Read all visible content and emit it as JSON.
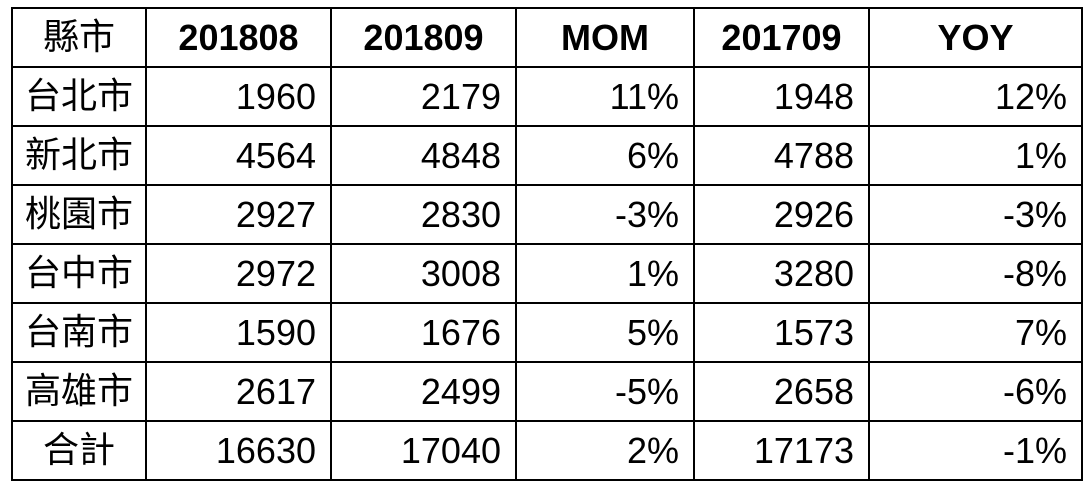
{
  "table": {
    "headers": [
      "縣市",
      "201808",
      "201809",
      "MOM",
      "201709",
      "YOY"
    ],
    "rows": [
      [
        "台北市",
        "1960",
        "2179",
        "11%",
        "1948",
        "12%"
      ],
      [
        "新北市",
        "4564",
        "4848",
        "6%",
        "4788",
        "1%"
      ],
      [
        "桃園市",
        "2927",
        "2830",
        "-3%",
        "2926",
        "-3%"
      ],
      [
        "台中市",
        "2972",
        "3008",
        "1%",
        "3280",
        "-8%"
      ],
      [
        "台南市",
        "1590",
        "1676",
        "5%",
        "1573",
        "7%"
      ],
      [
        "高雄市",
        "2617",
        "2499",
        "-5%",
        "2658",
        "-6%"
      ],
      [
        "合計",
        "16630",
        "17040",
        "2%",
        "17173",
        "-1%"
      ]
    ]
  }
}
